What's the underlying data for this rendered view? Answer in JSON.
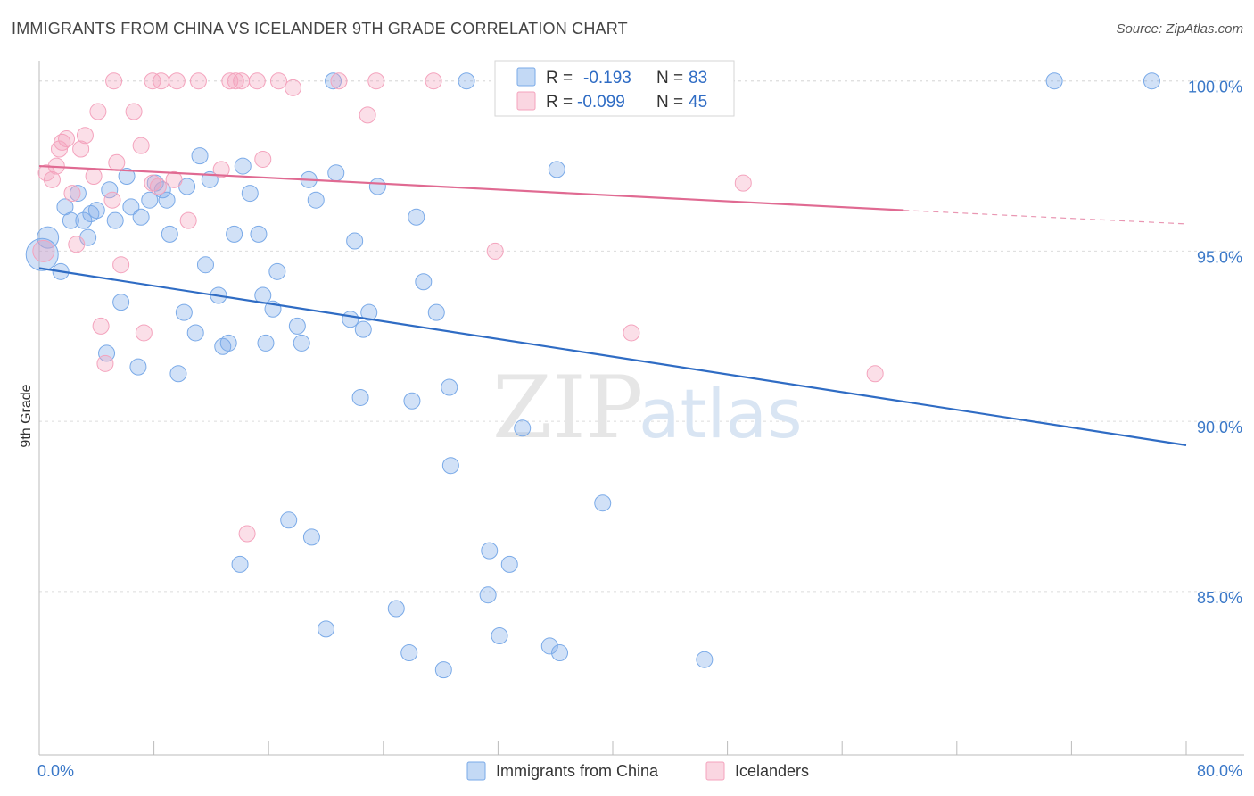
{
  "header": {
    "title": "IMMIGRANTS FROM CHINA VS ICELANDER 9TH GRADE CORRELATION CHART",
    "source": "Source: ZipAtlas.com"
  },
  "watermark": {
    "zip": "ZIP",
    "atlas": "atlas"
  },
  "legend": {
    "items": [
      {
        "r_label": "R =",
        "r_value": "-0.193",
        "n_label": "N =",
        "n_value": "83",
        "color": "#7aaae8"
      },
      {
        "r_label": "R =",
        "r_value": "-0.099",
        "n_label": "N =",
        "n_value": "45",
        "color": "#f4a3bd"
      }
    ]
  },
  "bottom_legend": {
    "items": [
      {
        "label": "Immigrants from China",
        "color": "#7aaae8"
      },
      {
        "label": "Icelanders",
        "color": "#f4a3bd"
      }
    ]
  },
  "chart_data": {
    "type": "scatter",
    "title": "IMMIGRANTS FROM CHINA VS ICELANDER 9TH GRADE CORRELATION CHART",
    "xlabel": "",
    "ylabel": "9th Grade",
    "xlim": [
      0,
      80
    ],
    "ylim": [
      80.2,
      100.7
    ],
    "x_tick_labels": [
      "0.0%",
      "80.0%"
    ],
    "y_ticks": [
      85,
      90,
      95,
      100
    ],
    "y_tick_labels": [
      "85.0%",
      "90.0%",
      "95.0%",
      "100.0%"
    ],
    "grid": true,
    "legend_position": "top-center",
    "series": [
      {
        "name": "Immigrants from China",
        "color": "#7aaae8",
        "line_color": "#2f6cc4",
        "trend": {
          "x": [
            0,
            80
          ],
          "y": [
            94.5,
            89.3
          ]
        },
        "points": [
          [
            0.2,
            94.9,
            18
          ],
          [
            0.6,
            95.4,
            12
          ],
          [
            1.5,
            94.4,
            9
          ],
          [
            1.8,
            96.3,
            9
          ],
          [
            2.2,
            95.9,
            9
          ],
          [
            2.7,
            96.7,
            9
          ],
          [
            3.1,
            95.9,
            9
          ],
          [
            3.4,
            95.4,
            9
          ],
          [
            3.6,
            96.1,
            9
          ],
          [
            4.0,
            96.2,
            9
          ],
          [
            4.9,
            96.8,
            9
          ],
          [
            5.3,
            95.9,
            9
          ],
          [
            5.7,
            93.5,
            9
          ],
          [
            6.1,
            97.2,
            9
          ],
          [
            6.4,
            96.3,
            9
          ],
          [
            7.1,
            96.0,
            9
          ],
          [
            7.7,
            96.5,
            9
          ],
          [
            8.1,
            97.0,
            9
          ],
          [
            8.6,
            96.8,
            9
          ],
          [
            8.9,
            96.5,
            9
          ],
          [
            9.1,
            95.5,
            9
          ],
          [
            10.3,
            96.9,
            9
          ],
          [
            11.2,
            97.8,
            9
          ],
          [
            11.9,
            97.1,
            9
          ],
          [
            4.7,
            92.0,
            9
          ],
          [
            6.9,
            91.6,
            9
          ],
          [
            9.7,
            91.4,
            9
          ],
          [
            10.1,
            93.2,
            9
          ],
          [
            10.9,
            92.6,
            9
          ],
          [
            11.6,
            94.6,
            9
          ],
          [
            12.5,
            93.7,
            9
          ],
          [
            12.8,
            92.2,
            9
          ],
          [
            13.2,
            92.3,
            9
          ],
          [
            13.6,
            95.5,
            9
          ],
          [
            14.2,
            97.5,
            9
          ],
          [
            14.7,
            96.7,
            9
          ],
          [
            15.3,
            95.5,
            9
          ],
          [
            15.6,
            93.7,
            9
          ],
          [
            15.8,
            92.3,
            9
          ],
          [
            16.3,
            93.3,
            9
          ],
          [
            16.6,
            94.4,
            9
          ],
          [
            18.0,
            92.8,
            9
          ],
          [
            18.3,
            92.3,
            9
          ],
          [
            18.8,
            97.1,
            9
          ],
          [
            19.3,
            96.5,
            9
          ],
          [
            20.7,
            97.3,
            9
          ],
          [
            21.7,
            93.0,
            9
          ],
          [
            22.0,
            95.3,
            9
          ],
          [
            22.4,
            90.7,
            9
          ],
          [
            22.6,
            92.7,
            9
          ],
          [
            23.0,
            93.2,
            9
          ],
          [
            23.6,
            96.9,
            9
          ],
          [
            26.0,
            90.6,
            9
          ],
          [
            26.3,
            96.0,
            9
          ],
          [
            26.8,
            94.1,
            9
          ],
          [
            27.7,
            93.2,
            9
          ],
          [
            28.6,
            91.0,
            9
          ],
          [
            28.7,
            88.7,
            9
          ],
          [
            29.8,
            100.0,
            9
          ],
          [
            31.4,
            86.2,
            9
          ],
          [
            31.3,
            84.9,
            9
          ],
          [
            32.1,
            83.7,
            9
          ],
          [
            32.8,
            85.8,
            9
          ],
          [
            33.7,
            89.8,
            9
          ],
          [
            35.6,
            83.4,
            9
          ],
          [
            36.3,
            83.2,
            9
          ],
          [
            36.1,
            97.4,
            9
          ],
          [
            39.3,
            87.6,
            9
          ],
          [
            46.4,
            83.0,
            9
          ],
          [
            17.4,
            87.1,
            9
          ],
          [
            19.0,
            86.6,
            9
          ],
          [
            14.0,
            85.8,
            9
          ],
          [
            20.0,
            83.9,
            9
          ],
          [
            24.9,
            84.5,
            9
          ],
          [
            25.8,
            83.2,
            9
          ],
          [
            28.2,
            82.7,
            9
          ],
          [
            20.5,
            100.0,
            9
          ],
          [
            70.8,
            100.0,
            9
          ],
          [
            77.6,
            100.0,
            9
          ],
          [
            3.2,
            96.4,
            0
          ],
          [
            4.4,
            96.0,
            0
          ],
          [
            9.4,
            95.8,
            0
          ],
          [
            13.8,
            96.1,
            0
          ]
        ]
      },
      {
        "name": "Icelanders",
        "color": "#f4a3bd",
        "line_color": "#e06a92",
        "trend": {
          "x": [
            0,
            60.3
          ],
          "y": [
            97.5,
            96.2
          ]
        },
        "trend_dashed": {
          "x": [
            60.3,
            80
          ],
          "y": [
            96.2,
            95.8
          ]
        },
        "points": [
          [
            0.3,
            95.0,
            12
          ],
          [
            0.5,
            97.3,
            9
          ],
          [
            0.9,
            97.1,
            9
          ],
          [
            1.2,
            97.5,
            9
          ],
          [
            1.4,
            98.0,
            9
          ],
          [
            1.6,
            98.2,
            9
          ],
          [
            1.9,
            98.3,
            9
          ],
          [
            2.3,
            96.7,
            9
          ],
          [
            2.6,
            95.2,
            9
          ],
          [
            2.9,
            98.0,
            9
          ],
          [
            3.2,
            98.4,
            9
          ],
          [
            3.8,
            97.2,
            9
          ],
          [
            4.1,
            99.1,
            9
          ],
          [
            4.3,
            92.8,
            9
          ],
          [
            4.6,
            91.7,
            9
          ],
          [
            5.1,
            96.5,
            9
          ],
          [
            5.4,
            97.6,
            9
          ],
          [
            5.7,
            94.6,
            9
          ],
          [
            6.6,
            99.1,
            9
          ],
          [
            7.1,
            98.1,
            9
          ],
          [
            7.3,
            92.6,
            9
          ],
          [
            7.9,
            97.0,
            9
          ],
          [
            8.3,
            96.9,
            9
          ],
          [
            9.4,
            97.1,
            9
          ],
          [
            10.4,
            95.9,
            9
          ],
          [
            5.2,
            100.0,
            9
          ],
          [
            7.9,
            100.0,
            9
          ],
          [
            8.5,
            100.0,
            9
          ],
          [
            9.6,
            100.0,
            9
          ],
          [
            11.1,
            100.0,
            9
          ],
          [
            12.7,
            97.4,
            9
          ],
          [
            13.3,
            100.0,
            9
          ],
          [
            13.7,
            100.0,
            9
          ],
          [
            14.1,
            100.0,
            9
          ],
          [
            14.5,
            86.7,
            9
          ],
          [
            15.2,
            100.0,
            9
          ],
          [
            15.6,
            97.7,
            9
          ],
          [
            16.7,
            100.0,
            9
          ],
          [
            17.7,
            99.8,
            9
          ],
          [
            20.9,
            100.0,
            9
          ],
          [
            22.9,
            99.0,
            9
          ],
          [
            23.5,
            100.0,
            9
          ],
          [
            27.5,
            100.0,
            9
          ],
          [
            31.8,
            95.0,
            9
          ],
          [
            41.3,
            92.6,
            9
          ],
          [
            49.1,
            97.0,
            9
          ],
          [
            58.3,
            91.4,
            9
          ]
        ]
      }
    ]
  }
}
